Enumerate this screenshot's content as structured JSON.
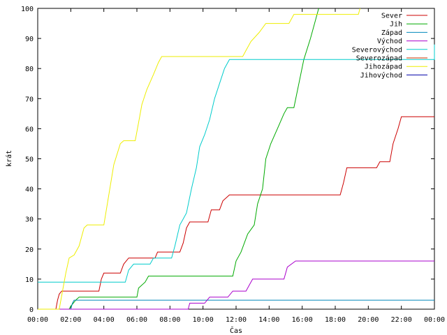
{
  "chart_data": {
    "type": "line",
    "step": true,
    "title": "",
    "xlabel": "Čas",
    "ylabel": "krát",
    "xlim": [
      0,
      24
    ],
    "ylim": [
      0,
      100
    ],
    "x_ticks": [
      "00:00",
      "02:00",
      "04:00",
      "06:00",
      "08:00",
      "10:00",
      "12:00",
      "14:00",
      "16:00",
      "18:00",
      "20:00",
      "22:00",
      "00:00"
    ],
    "y_ticks": [
      "0",
      "10",
      "20",
      "30",
      "40",
      "50",
      "60",
      "70",
      "80",
      "90",
      "100"
    ],
    "legend_position": "top-right",
    "grid": false,
    "series": [
      {
        "name": "Sever",
        "color": "#cc0000",
        "points": [
          [
            0,
            0
          ],
          [
            1.1,
            0
          ],
          [
            1.2,
            3
          ],
          [
            1.3,
            5
          ],
          [
            1.45,
            6
          ],
          [
            3.7,
            6
          ],
          [
            3.85,
            10
          ],
          [
            4.0,
            12
          ],
          [
            5.0,
            12
          ],
          [
            5.2,
            15
          ],
          [
            5.5,
            17
          ],
          [
            7.1,
            17
          ],
          [
            7.25,
            19
          ],
          [
            8.6,
            19
          ],
          [
            8.8,
            22
          ],
          [
            9.0,
            27
          ],
          [
            9.2,
            29
          ],
          [
            10.3,
            29
          ],
          [
            10.5,
            33
          ],
          [
            11.0,
            33
          ],
          [
            11.2,
            36
          ],
          [
            11.6,
            38
          ],
          [
            18.3,
            38
          ],
          [
            18.5,
            42
          ],
          [
            18.7,
            47
          ],
          [
            20.5,
            47
          ],
          [
            20.7,
            49
          ],
          [
            21.3,
            49
          ],
          [
            21.5,
            55
          ],
          [
            21.8,
            60
          ],
          [
            22.0,
            64
          ],
          [
            24,
            64
          ]
        ]
      },
      {
        "name": "Jih",
        "color": "#00aa00",
        "points": [
          [
            0,
            0
          ],
          [
            1.9,
            0
          ],
          [
            2.0,
            1
          ],
          [
            2.15,
            2
          ],
          [
            2.3,
            3
          ],
          [
            2.5,
            4
          ],
          [
            6.0,
            4
          ],
          [
            6.1,
            7
          ],
          [
            6.5,
            9
          ],
          [
            6.7,
            11
          ],
          [
            11.8,
            11
          ],
          [
            12.0,
            16
          ],
          [
            12.3,
            19
          ],
          [
            12.7,
            25
          ],
          [
            13.1,
            28
          ],
          [
            13.3,
            35
          ],
          [
            13.6,
            40
          ],
          [
            13.8,
            50
          ],
          [
            14.1,
            55
          ],
          [
            14.5,
            60
          ],
          [
            14.9,
            65
          ],
          [
            15.1,
            67
          ],
          [
            15.5,
            67
          ],
          [
            15.8,
            75
          ],
          [
            16.1,
            83
          ],
          [
            16.5,
            90
          ],
          [
            16.8,
            96
          ],
          [
            17.0,
            100
          ]
        ]
      },
      {
        "name": "Západ",
        "color": "#0088bb",
        "points": [
          [
            0,
            0
          ],
          [
            2.0,
            0
          ],
          [
            2.1,
            2
          ],
          [
            2.2,
            3
          ],
          [
            24,
            3
          ]
        ]
      },
      {
        "name": "Východ",
        "color": "#aa00cc",
        "points": [
          [
            0,
            0
          ],
          [
            9.1,
            0
          ],
          [
            9.2,
            2
          ],
          [
            10.1,
            2
          ],
          [
            10.4,
            4
          ],
          [
            11.5,
            4
          ],
          [
            11.8,
            6
          ],
          [
            12.6,
            6
          ],
          [
            12.8,
            8
          ],
          [
            13.0,
            10
          ],
          [
            14.9,
            10
          ],
          [
            15.1,
            14
          ],
          [
            15.6,
            16
          ],
          [
            24,
            16
          ]
        ]
      },
      {
        "name": "Severovýchod",
        "color": "#00cccc",
        "points": [
          [
            0,
            9
          ],
          [
            0.3,
            9
          ],
          [
            0.4,
            9
          ],
          [
            5.3,
            9
          ],
          [
            5.5,
            13
          ],
          [
            5.8,
            15
          ],
          [
            6.8,
            15
          ],
          [
            7.0,
            17
          ],
          [
            8.1,
            17
          ],
          [
            8.3,
            21
          ],
          [
            8.6,
            28
          ],
          [
            8.8,
            30
          ],
          [
            9.0,
            32
          ],
          [
            9.3,
            40
          ],
          [
            9.6,
            47
          ],
          [
            9.8,
            54
          ],
          [
            10.1,
            58
          ],
          [
            10.4,
            63
          ],
          [
            10.7,
            70
          ],
          [
            11.0,
            75
          ],
          [
            11.3,
            80
          ],
          [
            11.6,
            83
          ],
          [
            24,
            83
          ],
          [
            24,
            88
          ]
        ]
      },
      {
        "name": "Severozápad",
        "color": "#cc3300",
        "points": []
      },
      {
        "name": "Jihozápad",
        "color": "#eeee00",
        "points": [
          [
            0,
            0
          ],
          [
            1.3,
            0
          ],
          [
            1.5,
            6
          ],
          [
            1.7,
            12
          ],
          [
            1.9,
            17
          ],
          [
            2.2,
            18
          ],
          [
            2.5,
            21
          ],
          [
            2.8,
            27
          ],
          [
            3.0,
            28
          ],
          [
            4.0,
            28
          ],
          [
            4.3,
            38
          ],
          [
            4.6,
            48
          ],
          [
            5.0,
            55
          ],
          [
            5.2,
            56
          ],
          [
            5.9,
            56
          ],
          [
            6.1,
            62
          ],
          [
            6.3,
            68
          ],
          [
            6.6,
            73
          ],
          [
            7.0,
            78
          ],
          [
            7.3,
            82
          ],
          [
            7.5,
            84
          ],
          [
            12.4,
            84
          ],
          [
            12.6,
            86
          ],
          [
            12.9,
            89
          ],
          [
            13.4,
            92
          ],
          [
            13.8,
            95
          ],
          [
            15.2,
            95
          ],
          [
            15.5,
            98
          ],
          [
            19.4,
            98
          ],
          [
            19.5,
            100
          ]
        ]
      },
      {
        "name": "Jihovýchod",
        "color": "#0000aa",
        "points": []
      }
    ]
  }
}
